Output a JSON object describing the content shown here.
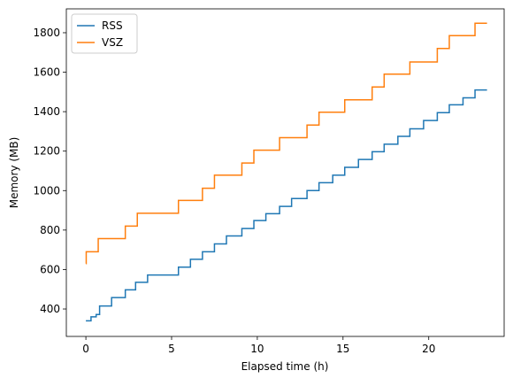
{
  "chart_data": {
    "type": "line",
    "xlabel": "Elapsed time (h)",
    "ylabel": "Memory (MB)",
    "xlim": [
      -1.14,
      24.4
    ],
    "xticks": [
      0,
      5,
      10,
      15,
      20
    ],
    "ylim": [
      261,
      1921
    ],
    "yticks": [
      400,
      600,
      800,
      1000,
      1200,
      1400,
      1600,
      1800
    ],
    "legend": "upper left",
    "series": [
      {
        "name": "RSS",
        "color": "#1f77b4",
        "x": [
          0,
          0.3,
          0.3,
          0.6,
          0.6,
          0.8,
          0.8,
          1.5,
          1.5,
          2.3,
          2.3,
          2.9,
          2.9,
          3.6,
          3.6,
          5.4,
          5.4,
          6.1,
          6.1,
          6.8,
          6.8,
          7.5,
          7.5,
          8.2,
          8.2,
          9.1,
          9.1,
          9.8,
          9.8,
          10.5,
          10.5,
          11.3,
          11.3,
          12.0,
          12.0,
          12.9,
          12.9,
          13.6,
          13.6,
          14.4,
          14.4,
          15.1,
          15.1,
          15.9,
          15.9,
          16.7,
          16.7,
          17.4,
          17.4,
          18.2,
          18.2,
          18.9,
          18.9,
          19.7,
          19.7,
          20.5,
          20.5,
          21.2,
          21.2,
          22.0,
          22.0,
          22.7,
          22.7,
          23.4
        ],
        "values": [
          340,
          340,
          360,
          360,
          372,
          372,
          415,
          415,
          458,
          458,
          497,
          497,
          535,
          535,
          572,
          572,
          612,
          612,
          652,
          652,
          690,
          690,
          730,
          730,
          770,
          770,
          808,
          808,
          848,
          848,
          883,
          883,
          920,
          920,
          960,
          960,
          1000,
          1000,
          1040,
          1040,
          1078,
          1078,
          1118,
          1118,
          1158,
          1158,
          1197,
          1197,
          1235,
          1235,
          1275,
          1275,
          1313,
          1313,
          1355,
          1355,
          1395,
          1395,
          1435,
          1435,
          1470,
          1470,
          1510,
          1510
        ]
      },
      {
        "name": "VSZ",
        "color": "#ff7f0e",
        "x": [
          0,
          0.02,
          0.02,
          0.72,
          0.72,
          2.3,
          2.3,
          3.0,
          3.0,
          5.4,
          5.4,
          6.8,
          6.8,
          7.5,
          7.5,
          9.1,
          9.1,
          9.8,
          9.8,
          11.3,
          11.3,
          12.9,
          12.9,
          13.6,
          13.6,
          15.1,
          15.1,
          16.7,
          16.7,
          17.4,
          17.4,
          18.9,
          18.9,
          20.5,
          20.5,
          21.2,
          21.2,
          22.7,
          22.7,
          23.4
        ],
        "values": [
          630,
          630,
          690,
          690,
          757,
          757,
          820,
          820,
          885,
          885,
          950,
          950,
          1012,
          1012,
          1078,
          1078,
          1140,
          1140,
          1205,
          1205,
          1268,
          1268,
          1332,
          1332,
          1397,
          1397,
          1460,
          1460,
          1525,
          1525,
          1590,
          1590,
          1652,
          1652,
          1720,
          1720,
          1785,
          1785,
          1848,
          1848
        ]
      }
    ]
  }
}
